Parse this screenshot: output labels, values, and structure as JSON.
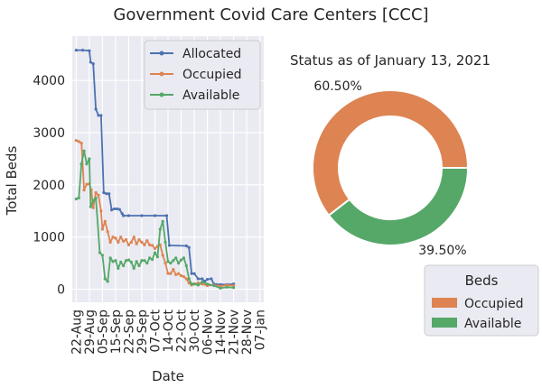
{
  "suptitle": "Government Covid Care Centers [CCC]",
  "colors": {
    "allocated": "#4c72b0",
    "occupied": "#dd8452",
    "available": "#55a868",
    "axes_bg": "#eaeaf2",
    "grid": "#ffffff"
  },
  "chart_data": [
    {
      "type": "line",
      "xlabel": "Date",
      "ylabel": "Total Beds",
      "ylim": [
        -250,
        4850
      ],
      "yticks": [
        0,
        1000,
        2000,
        3000,
        4000
      ],
      "grid": true,
      "legend_position": "top-right",
      "xtick_labels": [
        "22-Aug",
        "29-Aug",
        "05-Sep",
        "15-Sep",
        "22-Sep",
        "29-Sep",
        "07-Oct",
        "14-Oct",
        "22-Oct",
        "30-Oct",
        "06-Nov",
        "14-Nov",
        "21-Nov",
        "28-Nov",
        "07-Jan"
      ],
      "series": [
        {
          "name": "Allocated",
          "color_key": "allocated",
          "points": [
            [
              0,
              4580
            ],
            [
              0.5,
              4580
            ],
            [
              1,
              4570
            ],
            [
              1.1,
              4350
            ],
            [
              1.3,
              4320
            ],
            [
              1.5,
              3450
            ],
            [
              1.7,
              3330
            ],
            [
              1.9,
              3330
            ],
            [
              2.1,
              1850
            ],
            [
              2.3,
              1830
            ],
            [
              2.5,
              1830
            ],
            [
              2.7,
              1520
            ],
            [
              2.9,
              1540
            ],
            [
              3.1,
              1540
            ],
            [
              3.3,
              1530
            ],
            [
              3.5,
              1450
            ],
            [
              3.6,
              1410
            ],
            [
              4,
              1410
            ],
            [
              5,
              1410
            ],
            [
              6,
              1410
            ],
            [
              6.9,
              1410
            ],
            [
              7.1,
              840
            ],
            [
              8.4,
              830
            ],
            [
              8.6,
              800
            ],
            [
              8.8,
              300
            ],
            [
              9,
              300
            ],
            [
              9.3,
              200
            ],
            [
              9.6,
              200
            ],
            [
              9.8,
              150
            ],
            [
              10,
              190
            ],
            [
              10.3,
              200
            ],
            [
              10.5,
              100
            ],
            [
              10.7,
              90
            ],
            [
              11,
              90
            ],
            [
              11.5,
              90
            ],
            [
              12,
              100
            ]
          ]
        },
        {
          "name": "Occupied",
          "color_key": "occupied",
          "points": [
            [
              0,
              2850
            ],
            [
              0.2,
              2830
            ],
            [
              0.4,
              2800
            ],
            [
              0.6,
              1900
            ],
            [
              0.8,
              2010
            ],
            [
              1,
              2020
            ],
            [
              1.15,
              1900
            ],
            [
              1.3,
              1560
            ],
            [
              1.5,
              1850
            ],
            [
              1.7,
              1800
            ],
            [
              1.9,
              1500
            ],
            [
              2,
              1150
            ],
            [
              2.2,
              1300
            ],
            [
              2.4,
              1100
            ],
            [
              2.6,
              900
            ],
            [
              2.8,
              1000
            ],
            [
              3,
              980
            ],
            [
              3.2,
              900
            ],
            [
              3.4,
              1000
            ],
            [
              3.6,
              920
            ],
            [
              3.8,
              950
            ],
            [
              4,
              850
            ],
            [
              4.2,
              900
            ],
            [
              4.4,
              1000
            ],
            [
              4.6,
              870
            ],
            [
              4.8,
              950
            ],
            [
              5,
              900
            ],
            [
              5.2,
              850
            ],
            [
              5.4,
              930
            ],
            [
              5.6,
              850
            ],
            [
              5.8,
              840
            ],
            [
              6,
              780
            ],
            [
              6.2,
              820
            ],
            [
              6.4,
              850
            ],
            [
              6.6,
              650
            ],
            [
              6.8,
              500
            ],
            [
              7,
              300
            ],
            [
              7.2,
              300
            ],
            [
              7.4,
              380
            ],
            [
              7.6,
              280
            ],
            [
              7.8,
              300
            ],
            [
              8,
              260
            ],
            [
              8.2,
              240
            ],
            [
              8.4,
              200
            ],
            [
              8.6,
              120
            ],
            [
              8.8,
              80
            ],
            [
              9,
              100
            ],
            [
              9.3,
              120
            ],
            [
              9.6,
              100
            ],
            [
              10,
              70
            ],
            [
              10.5,
              80
            ],
            [
              11,
              60
            ],
            [
              11.5,
              80
            ],
            [
              12,
              70
            ]
          ]
        },
        {
          "name": "Available",
          "color_key": "available",
          "points": [
            [
              0,
              1730
            ],
            [
              0.2,
              1750
            ],
            [
              0.4,
              2400
            ],
            [
              0.6,
              2650
            ],
            [
              0.8,
              2400
            ],
            [
              1,
              2500
            ],
            [
              1.1,
              1580
            ],
            [
              1.3,
              1700
            ],
            [
              1.5,
              1750
            ],
            [
              1.8,
              700
            ],
            [
              2,
              650
            ],
            [
              2.2,
              200
            ],
            [
              2.4,
              150
            ],
            [
              2.6,
              600
            ],
            [
              2.8,
              530
            ],
            [
              3,
              550
            ],
            [
              3.2,
              400
            ],
            [
              3.4,
              520
            ],
            [
              3.6,
              450
            ],
            [
              3.8,
              550
            ],
            [
              4,
              560
            ],
            [
              4.2,
              520
            ],
            [
              4.4,
              400
            ],
            [
              4.6,
              530
            ],
            [
              4.8,
              450
            ],
            [
              5,
              550
            ],
            [
              5.2,
              550
            ],
            [
              5.4,
              500
            ],
            [
              5.6,
              600
            ],
            [
              5.8,
              570
            ],
            [
              6,
              700
            ],
            [
              6.2,
              620
            ],
            [
              6.4,
              1150
            ],
            [
              6.6,
              1300
            ],
            [
              6.8,
              900
            ],
            [
              7,
              530
            ],
            [
              7.2,
              500
            ],
            [
              7.4,
              550
            ],
            [
              7.6,
              600
            ],
            [
              7.8,
              500
            ],
            [
              8,
              560
            ],
            [
              8.2,
              600
            ],
            [
              8.4,
              450
            ],
            [
              8.6,
              200
            ],
            [
              8.8,
              100
            ],
            [
              9,
              100
            ],
            [
              9.3,
              80
            ],
            [
              9.6,
              140
            ],
            [
              10,
              100
            ],
            [
              10.5,
              70
            ],
            [
              11,
              20
            ],
            [
              11.5,
              40
            ],
            [
              12,
              30
            ]
          ]
        }
      ]
    },
    {
      "type": "pie",
      "donut": true,
      "title": "Status as of January 13, 2021",
      "legend_title": "Beds",
      "legend_position": "bottom-right",
      "slices": [
        {
          "label": "Occupied",
          "value": 60.5,
          "display": "60.50%",
          "color_key": "occupied"
        },
        {
          "label": "Available",
          "value": 39.5,
          "display": "39.50%",
          "color_key": "available"
        }
      ]
    }
  ]
}
